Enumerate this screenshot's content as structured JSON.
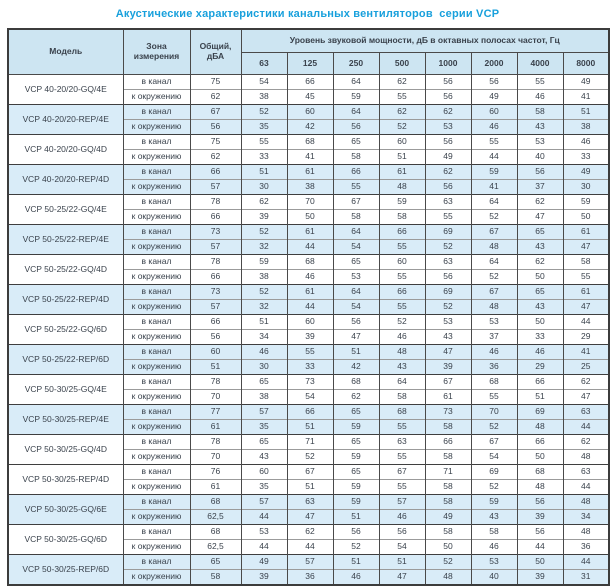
{
  "title": "Акустические характеристики канальных вентиляторов  серии VCP",
  "table": {
    "headers": {
      "model": "Модель",
      "zone": "Зона измерения",
      "total": "Общий, дБА",
      "spl_band": "Уровень звуковой мощности, дБ в октавных полосах частот, Гц",
      "frequencies": [
        "63",
        "125",
        "250",
        "500",
        "1000",
        "2000",
        "4000",
        "8000"
      ]
    },
    "zone_labels": [
      "в канал",
      "к окружению"
    ],
    "colors": {
      "title_blue": "#18a0dc",
      "header_bg": "#cde5f2",
      "highlight_row_bg": "#d9ecf8",
      "border_dark": "#3c3c3c"
    },
    "rows": [
      {
        "model": "VCP 40-20/20-GQ/4E",
        "highlight": false,
        "in_duct": {
          "total": "75",
          "values": [
            "54",
            "66",
            "64",
            "62",
            "56",
            "56",
            "55",
            "49"
          ]
        },
        "to_env": {
          "total": "62",
          "values": [
            "38",
            "45",
            "59",
            "55",
            "56",
            "49",
            "46",
            "41"
          ]
        }
      },
      {
        "model": "VCP 40-20/20-REP/4E",
        "highlight": true,
        "in_duct": {
          "total": "67",
          "values": [
            "52",
            "60",
            "64",
            "62",
            "62",
            "60",
            "58",
            "51"
          ]
        },
        "to_env": {
          "total": "56",
          "values": [
            "35",
            "42",
            "56",
            "52",
            "53",
            "46",
            "43",
            "38"
          ]
        }
      },
      {
        "model": "VCP 40-20/20-GQ/4D",
        "highlight": false,
        "in_duct": {
          "total": "75",
          "values": [
            "55",
            "68",
            "65",
            "60",
            "56",
            "55",
            "53",
            "46"
          ]
        },
        "to_env": {
          "total": "62",
          "values": [
            "33",
            "41",
            "58",
            "51",
            "49",
            "44",
            "40",
            "33"
          ]
        }
      },
      {
        "model": "VCP 40-20/20-REP/4D",
        "highlight": true,
        "in_duct": {
          "total": "66",
          "values": [
            "51",
            "61",
            "66",
            "61",
            "62",
            "59",
            "56",
            "49"
          ]
        },
        "to_env": {
          "total": "57",
          "values": [
            "30",
            "38",
            "55",
            "48",
            "56",
            "41",
            "37",
            "30"
          ]
        }
      },
      {
        "model": "VCP 50-25/22-GQ/4E",
        "highlight": false,
        "in_duct": {
          "total": "78",
          "values": [
            "62",
            "70",
            "67",
            "59",
            "63",
            "64",
            "62",
            "59"
          ]
        },
        "to_env": {
          "total": "66",
          "values": [
            "39",
            "50",
            "58",
            "58",
            "55",
            "52",
            "47",
            "50"
          ]
        }
      },
      {
        "model": "VCP 50-25/22-REP/4E",
        "highlight": true,
        "in_duct": {
          "total": "73",
          "values": [
            "52",
            "61",
            "64",
            "66",
            "69",
            "67",
            "65",
            "61"
          ]
        },
        "to_env": {
          "total": "57",
          "values": [
            "32",
            "44",
            "54",
            "55",
            "52",
            "48",
            "43",
            "47"
          ]
        }
      },
      {
        "model": "VCP 50-25/22-GQ/4D",
        "highlight": false,
        "in_duct": {
          "total": "78",
          "values": [
            "59",
            "68",
            "65",
            "60",
            "63",
            "64",
            "62",
            "58"
          ]
        },
        "to_env": {
          "total": "66",
          "values": [
            "38",
            "46",
            "53",
            "55",
            "56",
            "52",
            "50",
            "55"
          ]
        }
      },
      {
        "model": "VCP 50-25/22-REP/4D",
        "highlight": true,
        "in_duct": {
          "total": "73",
          "values": [
            "52",
            "61",
            "64",
            "66",
            "69",
            "67",
            "65",
            "61"
          ]
        },
        "to_env": {
          "total": "57",
          "values": [
            "32",
            "44",
            "54",
            "55",
            "52",
            "48",
            "43",
            "47"
          ]
        }
      },
      {
        "model": "VCP 50-25/22-GQ/6D",
        "highlight": false,
        "in_duct": {
          "total": "66",
          "values": [
            "51",
            "60",
            "56",
            "52",
            "53",
            "53",
            "50",
            "44"
          ]
        },
        "to_env": {
          "total": "56",
          "values": [
            "34",
            "39",
            "47",
            "46",
            "43",
            "37",
            "33",
            "29"
          ]
        }
      },
      {
        "model": "VCP 50-25/22-REP/6D",
        "highlight": true,
        "in_duct": {
          "total": "60",
          "values": [
            "46",
            "55",
            "51",
            "48",
            "47",
            "46",
            "46",
            "41"
          ]
        },
        "to_env": {
          "total": "51",
          "values": [
            "30",
            "33",
            "42",
            "43",
            "39",
            "36",
            "29",
            "25"
          ]
        }
      },
      {
        "model": "VCP 50-30/25-GQ/4E",
        "highlight": false,
        "in_duct": {
          "total": "78",
          "values": [
            "65",
            "73",
            "68",
            "64",
            "67",
            "68",
            "66",
            "62"
          ]
        },
        "to_env": {
          "total": "70",
          "values": [
            "38",
            "54",
            "62",
            "58",
            "61",
            "55",
            "51",
            "47"
          ]
        }
      },
      {
        "model": "VCP 50-30/25-REP/4E",
        "highlight": true,
        "in_duct": {
          "total": "77",
          "values": [
            "57",
            "66",
            "65",
            "68",
            "73",
            "70",
            "69",
            "63"
          ]
        },
        "to_env": {
          "total": "61",
          "values": [
            "35",
            "51",
            "59",
            "55",
            "58",
            "52",
            "48",
            "44"
          ]
        }
      },
      {
        "model": "VCP 50-30/25-GQ/4D",
        "highlight": false,
        "in_duct": {
          "total": "78",
          "values": [
            "65",
            "71",
            "65",
            "63",
            "66",
            "67",
            "66",
            "62"
          ]
        },
        "to_env": {
          "total": "70",
          "values": [
            "43",
            "52",
            "59",
            "55",
            "58",
            "54",
            "50",
            "48"
          ]
        }
      },
      {
        "model": "VCP 50-30/25-REP/4D",
        "highlight": false,
        "in_duct": {
          "total": "76",
          "values": [
            "60",
            "67",
            "65",
            "67",
            "71",
            "69",
            "68",
            "63"
          ]
        },
        "to_env": {
          "total": "61",
          "values": [
            "35",
            "51",
            "59",
            "55",
            "58",
            "52",
            "48",
            "44"
          ]
        }
      },
      {
        "model": "VCP 50-30/25-GQ/6E",
        "highlight": true,
        "in_duct": {
          "total": "68",
          "values": [
            "57",
            "63",
            "59",
            "57",
            "58",
            "59",
            "56",
            "48"
          ]
        },
        "to_env": {
          "total": "62,5",
          "values": [
            "44",
            "47",
            "51",
            "46",
            "49",
            "43",
            "39",
            "34"
          ]
        }
      },
      {
        "model": "VCP 50-30/25-GQ/6D",
        "highlight": false,
        "in_duct": {
          "total": "68",
          "values": [
            "53",
            "62",
            "56",
            "56",
            "58",
            "58",
            "56",
            "48"
          ]
        },
        "to_env": {
          "total": "62,5",
          "values": [
            "44",
            "44",
            "52",
            "54",
            "50",
            "46",
            "44",
            "36"
          ]
        }
      },
      {
        "model": "VCP 50-30/25-REP/6D",
        "highlight": true,
        "in_duct": {
          "total": "65",
          "values": [
            "49",
            "57",
            "51",
            "51",
            "52",
            "53",
            "50",
            "44"
          ]
        },
        "to_env": {
          "total": "58",
          "values": [
            "39",
            "36",
            "46",
            "47",
            "48",
            "40",
            "39",
            "31"
          ]
        }
      }
    ]
  }
}
